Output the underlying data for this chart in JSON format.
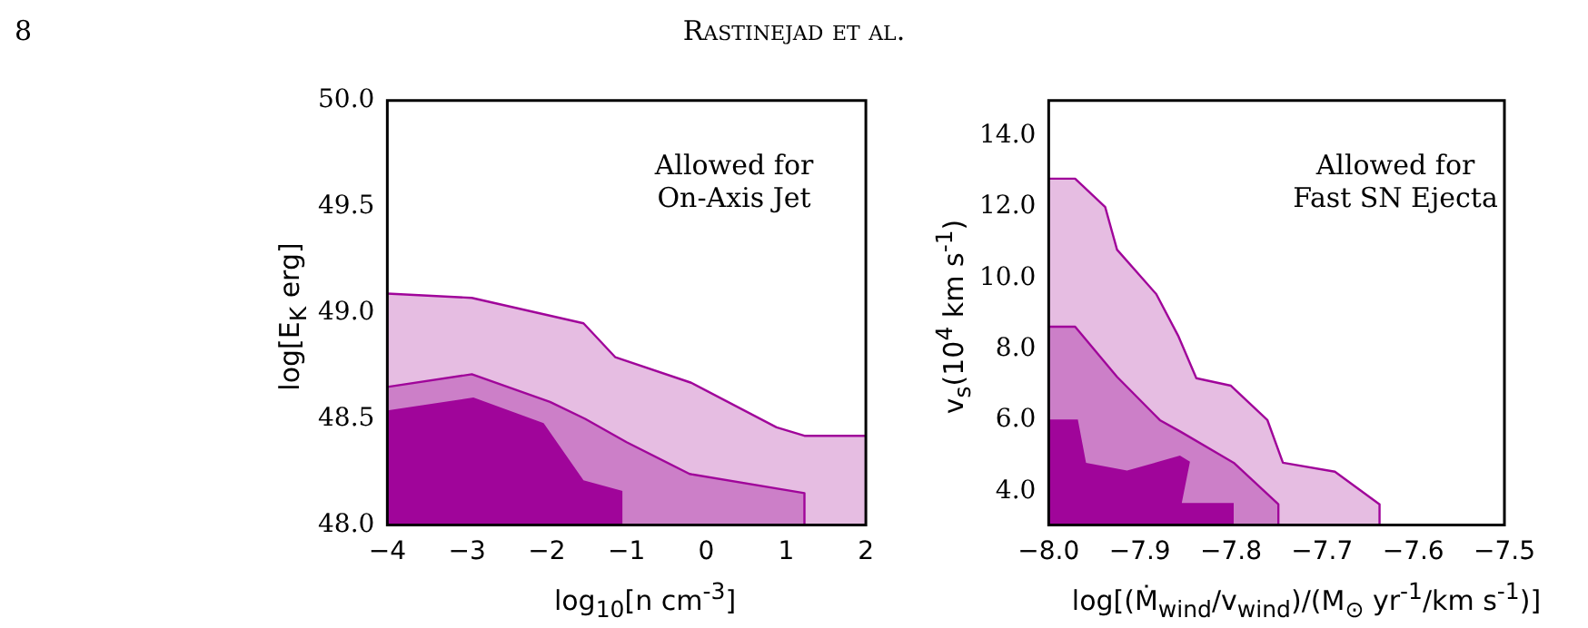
{
  "chart_data": [
    {
      "type": "area",
      "xlabel": "log$_{10}$[n cm$^{-3}$]",
      "ylabel": "log[E$_{K}$ erg]",
      "annotations": [
        "8",
        "Rastinejad et al.",
        "Allowed for\nOn-Axis Jet"
      ],
      "xlim": [
        -4,
        2
      ],
      "xticks": [
        {
          "value": -4,
          "label": "−4"
        },
        {
          "value": -3,
          "label": "−3"
        },
        {
          "value": -2,
          "label": "−2"
        },
        {
          "value": -1,
          "label": "−1"
        },
        0,
        1,
        2
      ],
      "ylim": [
        48,
        50
      ],
      "yticks": [
        {
          "value": 48,
          "label": "48.0"
        },
        48.5,
        {
          "value": 49,
          "label": "49.0"
        },
        49.5,
        {
          "value": 50,
          "label": "50.0"
        }
      ],
      "grid": false,
      "legend": false,
      "series": [
        {
          "color": "#e6bde2",
          "x": [
            -4,
            -2.94,
            -1.54,
            -1.14,
            -0.19,
            0.88,
            1.23,
            2
          ],
          "values": [
            49.09,
            49.07,
            48.95,
            48.79,
            48.67,
            48.46,
            48.42,
            48.42
          ]
        },
        {
          "color": "#cc7fc8",
          "x": [
            -4,
            -2.94,
            -1.96,
            -1.52,
            -1.0,
            -0.21,
            1.23,
            1.23
          ],
          "values": [
            48.65,
            48.71,
            48.58,
            48.5,
            48.39,
            48.24,
            48.15,
            48
          ]
        },
        {
          "color": "#a0059a",
          "x": [
            -4,
            -2.92,
            -2.04,
            -1.54,
            -1.05,
            -1.05
          ],
          "values": [
            48.54,
            48.6,
            48.48,
            48.21,
            48.16,
            48
          ]
        }
      ]
    },
    {
      "type": "area",
      "xlabel": "log[(Ṁ$_{wind}$/v$_{wind}$)/(M$_{⊙}$ yr$^{-1}$/km s$^{-1}$)]",
      "ylabel": "v$_{s}$(10$^{4}$ km s$^{-1}$)",
      "annotations": [
        "Allowed for\nFast SN Ejecta"
      ],
      "xlim": [
        -8,
        -7.5
      ],
      "xticks": [
        {
          "value": -8,
          "label": "−8.0"
        },
        {
          "value": -7.9,
          "label": "−7.9"
        },
        {
          "value": -7.8,
          "label": "−7.8"
        },
        {
          "value": -7.7,
          "label": "−7.7"
        },
        {
          "value": -7.6,
          "label": "−7.6"
        },
        {
          "value": -7.5,
          "label": "−7.5"
        }
      ],
      "ylim": [
        3.05,
        15
      ],
      "yticks": [
        {
          "value": 4,
          "label": "4.0"
        },
        {
          "value": 6,
          "label": "6.0"
        },
        {
          "value": 8,
          "label": "8.0"
        },
        {
          "value": 10,
          "label": "10.0"
        },
        {
          "value": 12,
          "label": "12.0"
        },
        {
          "value": 14,
          "label": "14.0"
        }
      ],
      "grid": false,
      "legend": false,
      "series": [
        {
          "color": "#e6bde2",
          "x": [
            -8,
            -7.971,
            -7.938,
            -7.925,
            -7.882,
            -7.858,
            -7.838,
            -7.8,
            -7.76,
            -7.743,
            -7.686,
            -7.637,
            -7.637
          ],
          "values": [
            12.8,
            12.8,
            12.0,
            10.8,
            9.55,
            8.38,
            7.18,
            6.97,
            6.0,
            4.8,
            4.55,
            3.63,
            3.05
          ]
        },
        {
          "color": "#cc7fc8",
          "x": [
            -8,
            -7.971,
            -7.925,
            -7.878,
            -7.855,
            -7.797,
            -7.748,
            -7.748
          ],
          "values": [
            8.63,
            8.63,
            7.22,
            6.0,
            5.67,
            4.8,
            3.63,
            3.05
          ]
        },
        {
          "color": "#a0059a",
          "x": [
            -8,
            -7.968,
            -7.959,
            -7.914,
            -7.856,
            -7.845,
            -7.854,
            -7.797,
            -7.797
          ],
          "values": [
            6.02,
            6.02,
            4.8,
            4.58,
            5.0,
            4.83,
            3.67,
            3.67,
            3.05
          ]
        }
      ]
    }
  ]
}
